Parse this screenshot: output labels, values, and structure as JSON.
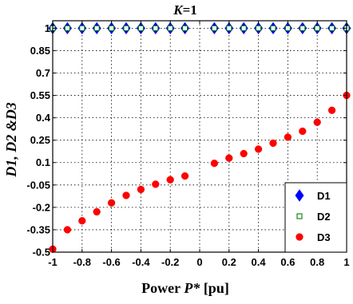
{
  "chart_data": {
    "type": "scatter",
    "title": "K=1",
    "title_parts": {
      "var": "K",
      "rest": "=1"
    },
    "xlabel": "Power P* [pu]",
    "xlabel_parts": {
      "pre": "Power ",
      "var": "P*",
      "post": " [pu]"
    },
    "ylabel": "D1, D2 &D3",
    "xlim": [
      -1,
      1
    ],
    "ylim": [
      -0.5,
      1.05
    ],
    "xticks": [
      "-1",
      "-0.8",
      "-0.6",
      "-0.4",
      "-0.2",
      "0",
      "0.2",
      "0.4",
      "0.6",
      "0.8",
      "1"
    ],
    "xtick_values": [
      -1,
      -0.8,
      -0.6,
      -0.4,
      -0.2,
      0,
      0.2,
      0.4,
      0.6,
      0.8,
      1
    ],
    "yticks": [
      "-0.5",
      "-0.35",
      "-0.2",
      "-0.05",
      "0.1",
      "0.25",
      "0.4",
      "0.55",
      "0.7",
      "0.85",
      "1"
    ],
    "ytick_values": [
      -0.5,
      -0.35,
      -0.2,
      -0.05,
      0.1,
      0.25,
      0.4,
      0.55,
      0.7,
      0.85,
      1
    ],
    "grid": true,
    "legend_position": "bottom-right",
    "series": [
      {
        "name": "D1",
        "marker": "diamond",
        "color": "#0000ff",
        "x": [
          -1,
          -0.9,
          -0.8,
          -0.7,
          -0.6,
          -0.5,
          -0.4,
          -0.3,
          -0.2,
          -0.1,
          0.1,
          0.2,
          0.3,
          0.4,
          0.5,
          0.6,
          0.7,
          0.8,
          0.9,
          1
        ],
        "y": [
          1,
          1,
          1,
          1,
          1,
          1,
          1,
          1,
          1,
          1,
          1,
          1,
          1,
          1,
          1,
          1,
          1,
          1,
          1,
          1
        ]
      },
      {
        "name": "D2",
        "marker": "square",
        "color": "#008000",
        "x": [
          -1,
          -0.9,
          -0.8,
          -0.7,
          -0.6,
          -0.5,
          -0.4,
          -0.3,
          -0.2,
          -0.1,
          0.1,
          0.2,
          0.3,
          0.4,
          0.5,
          0.6,
          0.7,
          0.8,
          0.9,
          1
        ],
        "y": [
          1,
          1,
          1,
          1,
          1,
          1,
          1,
          1,
          1,
          1,
          1,
          1,
          1,
          1,
          1,
          1,
          1,
          1,
          1,
          1
        ]
      },
      {
        "name": "D3",
        "marker": "circle",
        "color": "#ff0000",
        "x": [
          -1,
          -0.9,
          -0.8,
          -0.7,
          -0.6,
          -0.5,
          -0.4,
          -0.3,
          -0.2,
          -0.1,
          0.1,
          0.2,
          0.3,
          0.4,
          0.5,
          0.6,
          0.7,
          0.8,
          0.9,
          1
        ],
        "y": [
          -0.48,
          -0.35,
          -0.29,
          -0.23,
          -0.17,
          -0.12,
          -0.08,
          -0.045,
          -0.015,
          0.01,
          0.095,
          0.13,
          0.16,
          0.19,
          0.23,
          0.27,
          0.31,
          0.37,
          0.45,
          0.55
        ]
      }
    ]
  }
}
